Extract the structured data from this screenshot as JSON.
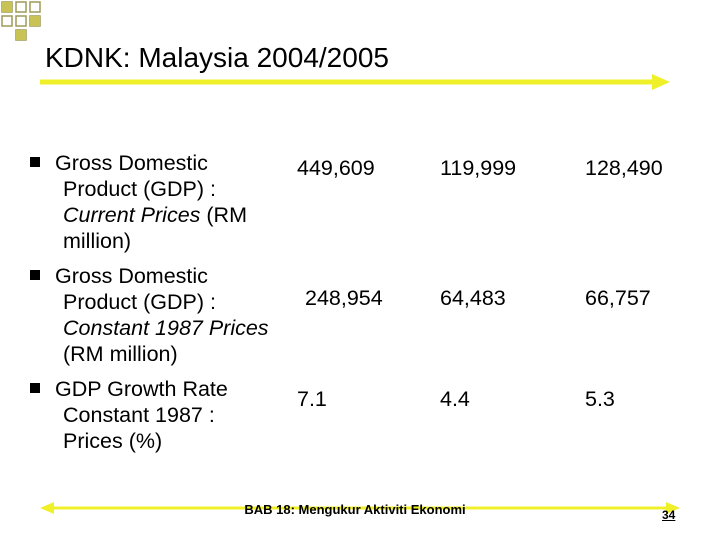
{
  "header": {
    "title": "KDNK: Malaysia 2004/2005"
  },
  "items": [
    {
      "label": [
        "Gross Domestic Product (GDP) :",
        "Current Prices",
        "(RM million)"
      ],
      "values": [
        "449,609",
        "119,999",
        "128,490"
      ]
    },
    {
      "label": [
        "Gross Domestic Product (GDP) :",
        "Constant 1987 Prices",
        "(RM million)"
      ],
      "values": [
        "248,954",
        "64,483",
        "66,757"
      ]
    },
    {
      "label": [
        "GDP Growth Rate Constant 1987 : Prices (%)"
      ],
      "values": [
        "7.1",
        "4.4",
        "5.3"
      ]
    }
  ],
  "footer": {
    "text": "BAB 18: Mengukur Aktiviti Ekonomi",
    "page": "34"
  }
}
